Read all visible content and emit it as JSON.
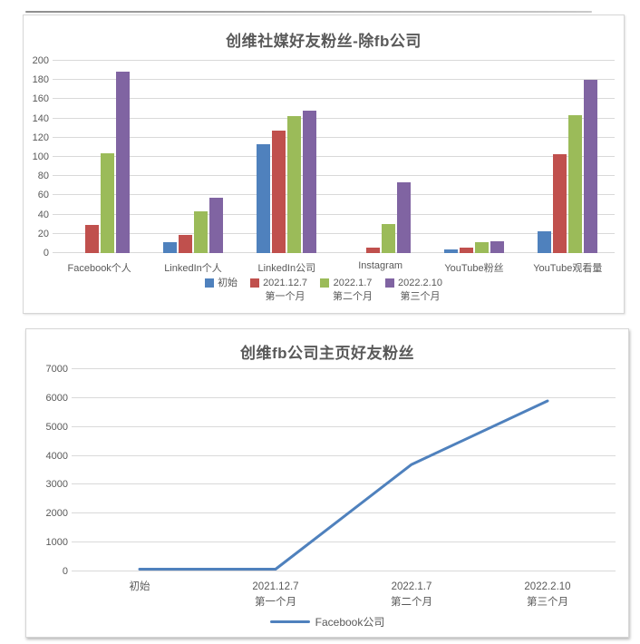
{
  "colors": {
    "text": "#595959",
    "gridline": "#D9D9D9",
    "panel_border": "#D6D6D6"
  },
  "chart_data": [
    {
      "type": "bar",
      "title": "创维社媒好友粉丝-除fb公司",
      "categories": [
        "Facebook个人",
        "LinkedIn个人",
        "LinkedIn公司",
        "Instagram",
        "YouTube粉丝",
        "YouTube观看量"
      ],
      "series": [
        {
          "name": "初始",
          "legend_line1": "初始",
          "legend_line2": "",
          "color": "#4F81BD",
          "values": [
            0,
            11,
            113,
            0,
            4,
            23
          ]
        },
        {
          "name": "2021.12.7 第一个月",
          "legend_line1": "2021.12.7",
          "legend_line2": "第一个月",
          "color": "#C0504D",
          "values": [
            29,
            19,
            127,
            6,
            6,
            103
          ]
        },
        {
          "name": "2022.1.7 第二个月",
          "legend_line1": "2022.1.7",
          "legend_line2": "第二个月",
          "color": "#9BBB59",
          "values": [
            104,
            43,
            142,
            30,
            11,
            143
          ]
        },
        {
          "name": "2022.2.10 第三个月",
          "legend_line1": "2022.2.10",
          "legend_line2": "第三个月",
          "color": "#8064A2",
          "values": [
            189,
            58,
            148,
            74,
            12,
            180
          ]
        }
      ],
      "ylim": [
        0,
        200
      ],
      "yticks": [
        0,
        20,
        40,
        60,
        80,
        100,
        120,
        140,
        160,
        180,
        200
      ],
      "grid": true,
      "legend_position": "bottom"
    },
    {
      "type": "line",
      "title": "创维fb公司主页好友粉丝",
      "categories": [
        "初始",
        "2021.12.7",
        "2022.1.7",
        "2022.2.10"
      ],
      "category_line2": [
        "",
        "第一个月",
        "第二个月",
        "第三个月"
      ],
      "series": [
        {
          "name": "Facebook公司",
          "color": "#4F81BD",
          "values": [
            80,
            80,
            3700,
            5900
          ]
        }
      ],
      "ylim": [
        0,
        7000
      ],
      "yticks": [
        0,
        1000,
        2000,
        3000,
        4000,
        5000,
        6000,
        7000
      ],
      "grid": true,
      "legend_position": "bottom"
    }
  ]
}
